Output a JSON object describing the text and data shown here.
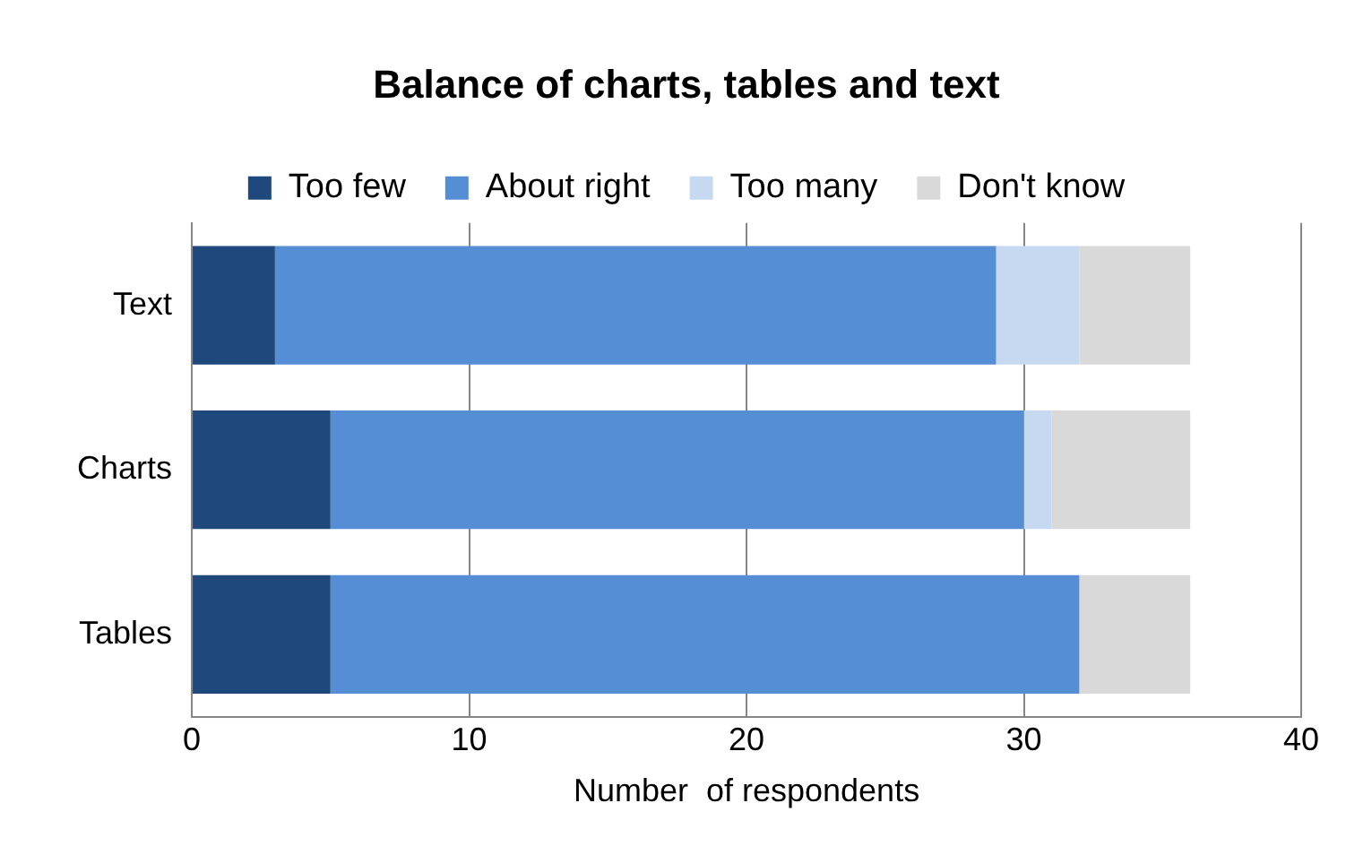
{
  "chart_data": {
    "type": "bar",
    "orientation": "horizontal",
    "stacked": true,
    "title": "Balance of charts, tables and text",
    "xlabel": "Number  of respondents",
    "categories": [
      "Text",
      "Charts",
      "Tables"
    ],
    "series": [
      {
        "name": "Too few",
        "color": "#1f497d",
        "values": [
          3,
          5,
          5
        ]
      },
      {
        "name": "About right",
        "color": "#558ed5",
        "values": [
          26,
          25,
          27
        ]
      },
      {
        "name": "Too many",
        "color": "#c6d9f1",
        "values": [
          3,
          1,
          0
        ]
      },
      {
        "name": "Don't know",
        "color": "#d9d9d9",
        "values": [
          4,
          5,
          4
        ]
      }
    ],
    "xlim": [
      0,
      40
    ],
    "xticks": [
      0,
      10,
      20,
      30,
      40
    ],
    "grid": "x",
    "legend": "top"
  }
}
